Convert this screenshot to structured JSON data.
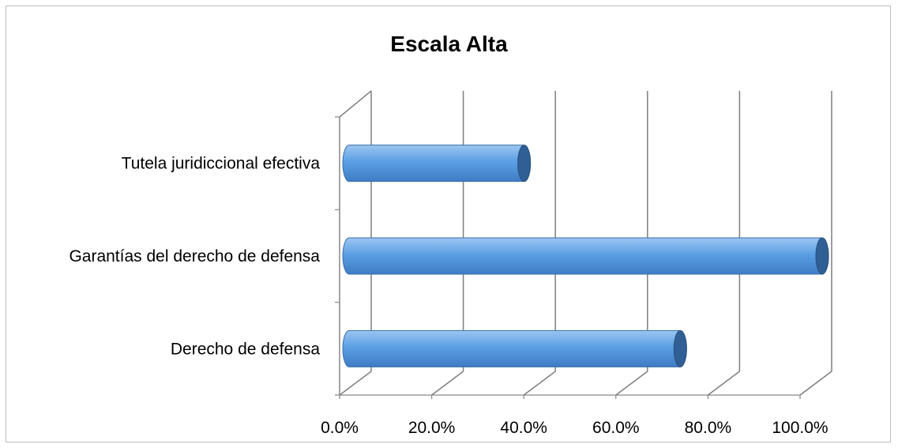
{
  "chart_data": {
    "type": "bar",
    "orientation": "horizontal",
    "style": "3d-cylinder",
    "title": "Escala Alta",
    "categories": [
      "Derecho de defensa",
      "Garantías del derecho de defensa",
      "Tutela juridiccional efectiva"
    ],
    "values": [
      0.7,
      1.0,
      0.37
    ],
    "xlim": [
      0,
      1
    ],
    "x_ticks": [
      "0.0%",
      "20.0%",
      "40.0%",
      "60.0%",
      "80.0%",
      "100.0%"
    ],
    "grid": true,
    "legend": "none",
    "colors": {
      "bar_top": "#9cc6f2",
      "bar_mid": "#5b9fe4",
      "bar_bottom": "#3f7cc4",
      "bar_cap": "#2f5f95",
      "grid": "#7f7f7f"
    }
  }
}
